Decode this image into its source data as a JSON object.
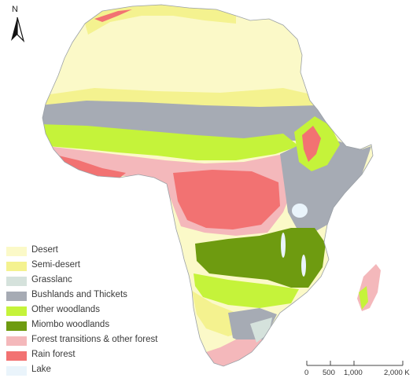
{
  "map": {
    "colors": {
      "desert": "#fbf9c8",
      "semi_desert": "#f4f28f",
      "grassland": "#d5e2dc",
      "bushlands": "#a6abb4",
      "other_woodlands": "#c5f33a",
      "miombo": "#6e9b10",
      "forest_transitions": "#f4b8bb",
      "rain_forest": "#f27272",
      "lake": "#eaf4fb",
      "outline": "#9aa0a6"
    }
  },
  "legend": {
    "items": [
      {
        "label": "Desert",
        "color": "#fbf9c8"
      },
      {
        "label": "Semi-desert",
        "color": "#f4f28f"
      },
      {
        "label": "Grasslanc",
        "color": "#d5e2dc"
      },
      {
        "label": "Bushlands and Thickets",
        "color": "#a6abb4"
      },
      {
        "label": "Other woodlands",
        "color": "#c5f33a"
      },
      {
        "label": "Miombo woodlands",
        "color": "#6e9b10"
      },
      {
        "label": "Forest transitions & other forest",
        "color": "#f4b8bb"
      },
      {
        "label": "Rain forest",
        "color": "#f27272"
      },
      {
        "label": "Lake",
        "color": "#eaf4fb"
      }
    ]
  },
  "north_arrow": {
    "letter": "N",
    "icon": "north-arrow-icon"
  },
  "scale_bar": {
    "labels": [
      "0",
      "500",
      "1,000",
      "2,000 K"
    ]
  }
}
